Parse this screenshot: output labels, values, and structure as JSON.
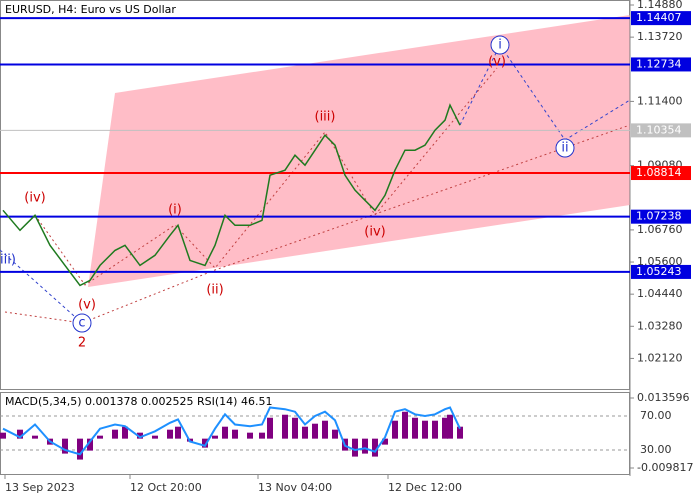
{
  "chart_data": [
    {
      "type": "line",
      "title": "EURUSD, H4:  Euro vs US Dollar",
      "color": "#1f7a1f",
      "x": [
        3,
        20,
        35,
        50,
        65,
        80,
        90,
        100,
        115,
        125,
        140,
        155,
        170,
        178,
        190,
        205,
        215,
        225,
        235,
        250,
        262,
        270,
        285,
        295,
        305,
        315,
        325,
        335,
        345,
        355,
        365,
        375,
        385,
        395,
        405,
        415,
        425,
        435,
        445,
        450,
        460
      ],
      "values": [
        1.07469,
        1.06746,
        1.07288,
        1.06203,
        1.0548,
        1.04757,
        1.04938,
        1.0548,
        1.06022,
        1.06203,
        1.0548,
        1.05842,
        1.06565,
        1.06926,
        1.05661,
        1.0548,
        1.06203,
        1.07288,
        1.06926,
        1.06926,
        1.07107,
        1.08734,
        1.08915,
        1.09457,
        1.09095,
        1.09638,
        1.1018,
        1.09819,
        1.08734,
        1.08192,
        1.0783,
        1.07469,
        1.08011,
        1.08915,
        1.09638,
        1.09638,
        1.09819,
        1.10361,
        1.10722,
        1.11265,
        1.10542
      ],
      "xlim": [
        0,
        630
      ],
      "xticks": [
        {
          "value": 5,
          "label": "13 Sep 2023"
        },
        {
          "value": 130,
          "label": "12 Oct 20:00"
        },
        {
          "value": 258,
          "label": "13 Nov 04:00"
        },
        {
          "value": 388,
          "label": "12 Dec 12:00"
        }
      ],
      "ylim": [
        1.0098,
        1.15061
      ],
      "yticks": [
        {
          "value": 1.1488,
          "label": "1.14880"
        },
        {
          "value": 1.1372,
          "label": "1.13720"
        },
        {
          "value": 1.114,
          "label": "1.11400"
        },
        {
          "value": 1.0908,
          "label": "1.09080"
        },
        {
          "value": 1.0676,
          "label": "1.06760"
        },
        {
          "value": 1.056,
          "label": "1.05600"
        },
        {
          "value": 1.0444,
          "label": "1.04440"
        },
        {
          "value": 1.0328,
          "label": "1.03280"
        },
        {
          "value": 1.0212,
          "label": "1.02120"
        }
      ],
      "levels": [
        {
          "value": 1.14407,
          "label": "1.14407",
          "color": "#0000e0",
          "line": true
        },
        {
          "value": 1.12734,
          "label": "1.12734",
          "color": "#0000e0",
          "line": true
        },
        {
          "value": 1.10354,
          "label": "1.10354",
          "color": "#c0c0c0",
          "line": false
        },
        {
          "value": 1.08814,
          "label": "1.08814",
          "color": "#ff0000",
          "line": true
        },
        {
          "value": 1.07238,
          "label": "1.07238",
          "color": "#0000e0",
          "line": true
        },
        {
          "value": 1.05243,
          "label": "1.05243",
          "color": "#0000e0",
          "line": true
        }
      ],
      "wave_labels": [
        {
          "text": "(iv)",
          "color": "#cc0000"
        },
        {
          "text": "iii)",
          "color": "#2233cc"
        },
        {
          "text": "(v)",
          "color": "#cc0000"
        },
        {
          "text": "c",
          "color": "#2233cc",
          "circled": true
        },
        {
          "text": "2",
          "color": "#cc0000"
        },
        {
          "text": "(i)",
          "color": "#cc0000"
        },
        {
          "text": "(ii)",
          "color": "#cc0000"
        },
        {
          "text": "(iii)",
          "color": "#cc0000"
        },
        {
          "text": "(iv)",
          "color": "#cc0000"
        },
        {
          "text": "(v)",
          "color": "#cc0000"
        },
        {
          "text": "i",
          "color": "#2233cc",
          "circled": true
        },
        {
          "text": "ii",
          "color": "#2233cc",
          "circled": true
        }
      ]
    },
    {
      "type": "bar",
      "title": "MACD(5,34,5) 0.001378 0.002525 RSI(14) 46.51",
      "series": [
        {
          "name": "MACD",
          "color": "#800080",
          "values": [
            0.002,
            0.003,
            0.001,
            -0.002,
            -0.005,
            -0.007,
            -0.004,
            0.001,
            0.003,
            0.004,
            0.002,
            0.001,
            0.003,
            0.004,
            -0.001,
            -0.003,
            0.001,
            0.004,
            0.003,
            0.002,
            0.002,
            0.007,
            0.008,
            0.007,
            0.004,
            0.005,
            0.006,
            0.003,
            -0.004,
            -0.006,
            -0.005,
            -0.006,
            -0.002,
            0.006,
            0.009,
            0.007,
            0.006,
            0.006,
            0.007,
            0.008,
            0.004
          ]
        },
        {
          "name": "RSI",
          "color": "#1e90ff",
          "axis": "y2",
          "values": [
            55,
            45,
            60,
            40,
            30,
            25,
            40,
            55,
            60,
            58,
            45,
            52,
            62,
            66,
            40,
            35,
            55,
            72,
            60,
            58,
            60,
            80,
            78,
            75,
            60,
            70,
            75,
            65,
            35,
            30,
            32,
            28,
            45,
            75,
            78,
            72,
            70,
            72,
            78,
            80,
            55
          ]
        }
      ],
      "ylim": [
        -0.011824,
        0.015603
      ],
      "yticks": [
        0.013596,
        -0.009817
      ],
      "y2lim": [
        1.8,
        98.2
      ],
      "y2ticks": [
        {
          "value": 70,
          "label": "70.00"
        },
        {
          "value": 30,
          "label": "30.00"
        }
      ]
    }
  ]
}
